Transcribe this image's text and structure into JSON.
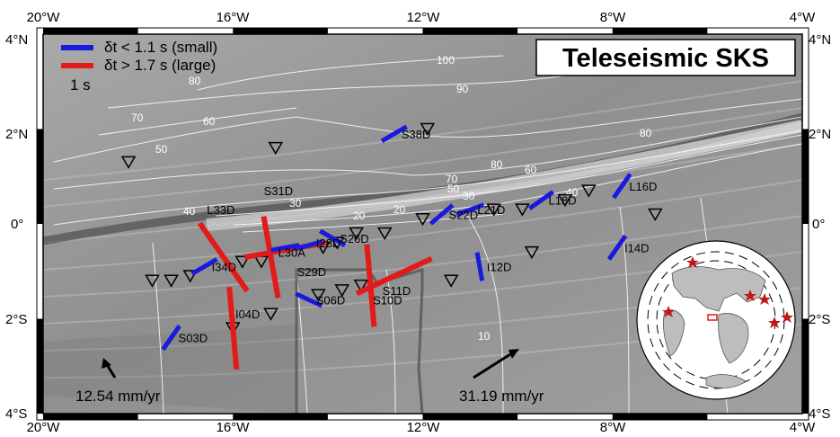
{
  "title": "Teleseismic SKS",
  "legend": {
    "small_label": "δt < 1.1 s (small)",
    "large_label": "δt > 1.7 s (large)",
    "scale_label": "1 s",
    "small_color": "#1a1adf",
    "large_color": "#e41a1a"
  },
  "axes": {
    "lon_ticks": [
      "20°W",
      "16°W",
      "12°W",
      "8°W",
      "4°W"
    ],
    "lat_ticks": [
      "4°N",
      "2°N",
      "0°",
      "2°S",
      "4°S"
    ]
  },
  "plate_motion": [
    {
      "label": "12.54 mm/yr",
      "value": 12.54,
      "unit": "mm/yr"
    },
    {
      "label": "31.19 mm/yr",
      "value": 31.19,
      "unit": "mm/yr"
    }
  ],
  "contours": [
    "100",
    "90",
    "80",
    "70",
    "60",
    "50",
    "40",
    "30",
    "20",
    "80",
    "70",
    "60",
    "50",
    "40",
    "30",
    "20",
    "10",
    "80",
    "40",
    "30",
    "50",
    "70",
    "60"
  ],
  "stations": [
    {
      "name": "S38D",
      "lon": -12.6,
      "lat": 1.9
    },
    {
      "name": "S22D",
      "lon": -11.6,
      "lat": 0.2
    },
    {
      "name": "L21D",
      "lon": -11.0,
      "lat": 0.3
    },
    {
      "name": "L18D",
      "lon": -9.5,
      "lat": 0.5
    },
    {
      "name": "L16D",
      "lon": -7.8,
      "lat": 0.8
    },
    {
      "name": "L33D",
      "lon": -16.7,
      "lat": 0.3
    },
    {
      "name": "S31D",
      "lon": -15.5,
      "lat": 0.7
    },
    {
      "name": "I28D",
      "lon": -14.4,
      "lat": -0.4
    },
    {
      "name": "S26D",
      "lon": -13.9,
      "lat": -0.3
    },
    {
      "name": "L30A",
      "lon": -15.2,
      "lat": -0.6
    },
    {
      "name": "I34D",
      "lon": -16.6,
      "lat": -0.9
    },
    {
      "name": "S29D",
      "lon": -14.8,
      "lat": -1.0
    },
    {
      "name": "S06D",
      "lon": -14.4,
      "lat": -1.6
    },
    {
      "name": "I12D",
      "lon": -10.8,
      "lat": -0.9
    },
    {
      "name": "I14D",
      "lon": -7.9,
      "lat": -0.5
    },
    {
      "name": "S11D",
      "lon": -13.0,
      "lat": -1.4
    },
    {
      "name": "S10D",
      "lon": -13.2,
      "lat": -1.6
    },
    {
      "name": "S03D",
      "lon": -17.3,
      "lat": -2.4
    },
    {
      "name": "I04D",
      "lon": -16.1,
      "lat": -1.9
    }
  ],
  "splits": [
    {
      "station": "S38D",
      "lon": -12.6,
      "lat": 1.9,
      "type": "small"
    },
    {
      "station": "S22D",
      "lon": -11.6,
      "lat": 0.2,
      "type": "small"
    },
    {
      "station": "L21D",
      "lon": -11.0,
      "lat": 0.3,
      "type": "small"
    },
    {
      "station": "L18D",
      "lon": -9.5,
      "lat": 0.5,
      "type": "small"
    },
    {
      "station": "L16D",
      "lon": -7.8,
      "lat": 0.8,
      "type": "small"
    },
    {
      "station": "L33D",
      "lon": -16.2,
      "lat": -0.7,
      "type": "large"
    },
    {
      "station": "S31D",
      "lon": -15.2,
      "lat": -0.7,
      "type": "large"
    },
    {
      "station": "L30A",
      "lon": -14.9,
      "lat": -0.55,
      "type": "large"
    },
    {
      "station": "I28D",
      "lon": -14.4,
      "lat": -0.45,
      "type": "small"
    },
    {
      "station": "S26D",
      "lon": -13.9,
      "lat": -0.3,
      "type": "small"
    },
    {
      "station": "I34D",
      "lon": -16.6,
      "lat": -0.9,
      "type": "small"
    },
    {
      "station": "S29D",
      "lon": -14.9,
      "lat": -0.5,
      "type": "small"
    },
    {
      "station": "S06D",
      "lon": -14.4,
      "lat": -1.6,
      "type": "small"
    },
    {
      "station": "I12D",
      "lon": -10.8,
      "lat": -0.9,
      "type": "small"
    },
    {
      "station": "I14D",
      "lon": -7.9,
      "lat": -0.5,
      "type": "small"
    },
    {
      "station": "S11D",
      "lon": -12.6,
      "lat": -1.1,
      "type": "large"
    },
    {
      "station": "S10D",
      "lon": -13.1,
      "lat": -1.3,
      "type": "large"
    },
    {
      "station": "S03D",
      "lon": -17.3,
      "lat": -2.4,
      "type": "small"
    },
    {
      "station": "I04D",
      "lon": -16.0,
      "lat": -2.2,
      "type": "large"
    }
  ]
}
